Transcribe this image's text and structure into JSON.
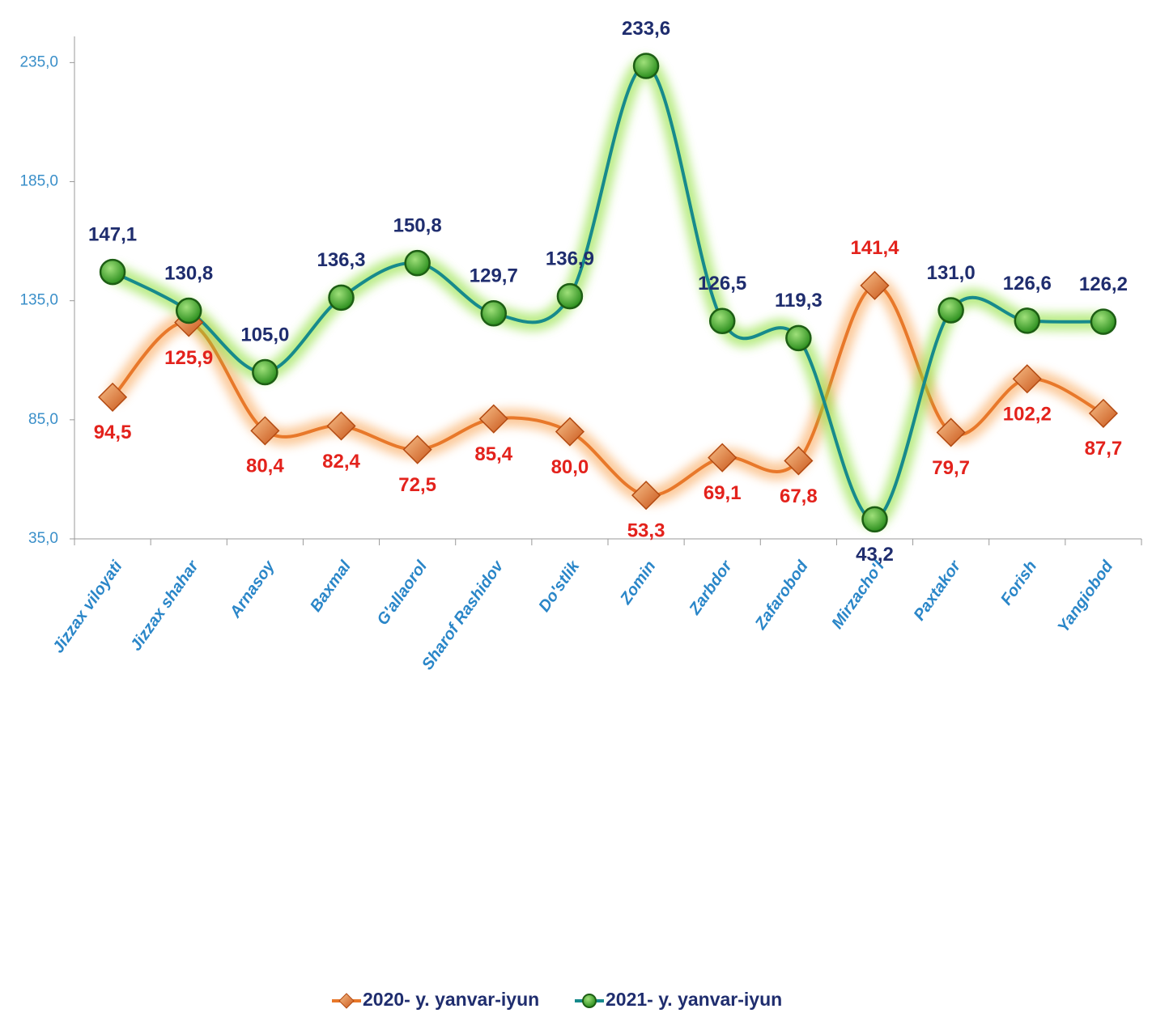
{
  "chart_data": {
    "type": "line",
    "categories": [
      "Jizzax viloyati",
      "Jizzax shahar",
      "Arnasoy",
      "Baxmal",
      "G'allaorol",
      "Sharof Rashidov",
      "Do'stlik",
      "Zomin",
      "Zarbdor",
      "Zafarobod",
      "Mirzacho'l",
      "Paxtakor",
      "Forish",
      "Yangiobod"
    ],
    "series": [
      {
        "name": "2020- y. yanvar-iyun",
        "color": "#e8782a",
        "label_color": "#e3221c",
        "values": [
          94.5,
          125.9,
          80.4,
          82.4,
          72.5,
          85.4,
          80.0,
          53.3,
          69.1,
          67.8,
          141.4,
          79.7,
          102.2,
          87.7
        ],
        "value_labels": [
          "94,5",
          "125,9",
          "80,4",
          "82,4",
          "72,5",
          "85,4",
          "80,0",
          "53,3",
          "69,1",
          "67,8",
          "141,4",
          "79,7",
          "102,2",
          "87,7"
        ]
      },
      {
        "name": "2021- y. yanvar-iyun",
        "color": "#178a8c",
        "label_color": "#1f2d6e",
        "values": [
          147.1,
          130.8,
          105.0,
          136.3,
          150.8,
          129.7,
          136.9,
          233.6,
          126.5,
          119.3,
          43.2,
          131.0,
          126.6,
          126.2
        ],
        "value_labels": [
          "147,1",
          "130,8",
          "105,0",
          "136,3",
          "150,8",
          "129,7",
          "136,9",
          "233,6",
          "126,5",
          "119,3",
          "43,2",
          "131,0",
          "126,6",
          "126,2"
        ]
      }
    ],
    "ylim": [
      35,
      246
    ],
    "yticks": [
      {
        "value": 35,
        "label": "35,0"
      },
      {
        "value": 85,
        "label": "85,0"
      },
      {
        "value": 135,
        "label": "135,0"
      },
      {
        "value": 185,
        "label": "185,0"
      },
      {
        "value": 235,
        "label": "235,0"
      }
    ],
    "legend": "bottom"
  }
}
